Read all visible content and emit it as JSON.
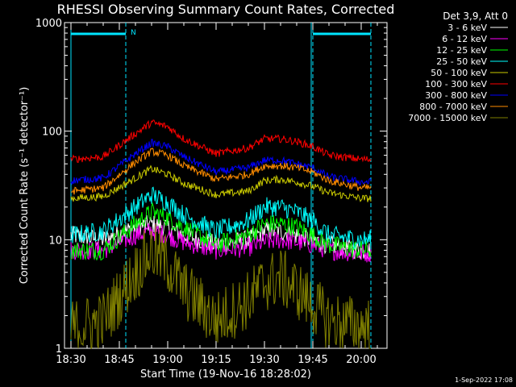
{
  "chart_data": {
    "type": "line",
    "title": "RHESSI Observing Summary Count Rates, Corrected",
    "xlabel": "Start Time (19-Nov-16 18:28:02)",
    "ylabel": "Corrected Count Rate (s⁻¹ detector⁻¹)",
    "yscale": "log",
    "xlim": [
      "18:28",
      "20:08"
    ],
    "ylim": [
      1,
      1000
    ],
    "x_ticks": [
      "18:30",
      "18:45",
      "19:00",
      "19:15",
      "19:30",
      "19:45",
      "20:00"
    ],
    "y_ticks": [
      "1",
      "10",
      "100",
      "1000"
    ],
    "legend_title": "Det 3,9, Att 0",
    "legend_position": "outside-right-top",
    "grid": false,
    "footer_date": "1-Sep-2022 17:08",
    "flag_label": "N",
    "night_flag_periods": [
      [
        "18:30",
        "18:47"
      ],
      [
        "19:45",
        "20:03"
      ]
    ],
    "data_interval": [
      "18:30",
      "20:03"
    ],
    "sample_times": [
      "18:30",
      "18:40",
      "18:50",
      "18:55",
      "19:00",
      "19:05",
      "19:15",
      "19:25",
      "19:30",
      "19:35",
      "19:40",
      "19:45",
      "19:50",
      "20:00",
      "20:03"
    ],
    "series": [
      {
        "name": "3 - 6 keV",
        "color": "#ffffff",
        "values": [
          11,
          10,
          13,
          14,
          13,
          11,
          9,
          10,
          12,
          12,
          11,
          10,
          9,
          8,
          8
        ]
      },
      {
        "name": "6 - 12 keV",
        "color": "#ff00ff",
        "values": [
          8,
          8,
          11,
          12,
          11,
          9.5,
          8,
          8.5,
          9.5,
          10,
          9.5,
          9,
          8,
          7.5,
          7.5
        ]
      },
      {
        "name": "12 - 25 keV",
        "color": "#00ff00",
        "values": [
          8,
          8,
          14,
          18,
          16,
          13,
          9,
          11,
          14,
          14,
          13,
          11,
          9,
          8,
          8
        ]
      },
      {
        "name": "25 - 50 keV",
        "color": "#00ffff",
        "values": [
          11,
          12,
          20,
          26,
          22,
          17,
          12,
          15,
          20,
          20,
          18,
          15,
          11,
          10,
          10
        ]
      },
      {
        "name": "50 - 100 keV",
        "color": "#cccc00",
        "values": [
          24,
          25,
          37,
          45,
          40,
          33,
          26,
          28,
          35,
          36,
          34,
          31,
          27,
          24,
          24
        ]
      },
      {
        "name": "100 - 300 keV",
        "color": "#ff0000",
        "values": [
          55,
          58,
          95,
          120,
          110,
          85,
          62,
          70,
          85,
          85,
          80,
          72,
          60,
          55,
          55
        ]
      },
      {
        "name": "300 - 800 keV",
        "color": "#0000ff",
        "values": [
          35,
          37,
          62,
          78,
          72,
          58,
          42,
          46,
          54,
          54,
          50,
          46,
          38,
          34,
          34
        ]
      },
      {
        "name": "800 - 7000 keV",
        "color": "#ff8c00",
        "values": [
          28,
          30,
          52,
          65,
          60,
          48,
          36,
          40,
          48,
          48,
          46,
          42,
          35,
          30,
          30
        ]
      },
      {
        "name": "7000 - 15000 keV",
        "color": "#808000",
        "values": [
          1.5,
          1.8,
          5,
          8,
          6,
          3.5,
          1.8,
          2.8,
          4,
          4.5,
          3.5,
          2.5,
          1.8,
          1.6,
          1.6
        ]
      }
    ]
  }
}
